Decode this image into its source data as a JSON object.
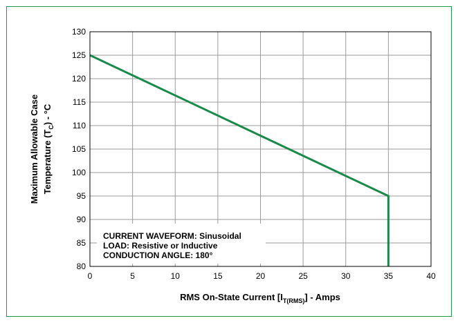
{
  "chart_data": {
    "type": "line",
    "x": [
      0,
      35,
      35
    ],
    "y": [
      125,
      95,
      80
    ],
    "xlim": [
      0,
      40
    ],
    "ylim": [
      80,
      130
    ],
    "xticks": [
      0,
      5,
      10,
      15,
      20,
      25,
      30,
      35,
      40
    ],
    "yticks": [
      80,
      85,
      90,
      95,
      100,
      105,
      110,
      115,
      120,
      125,
      130
    ],
    "grid": true,
    "line_color": "#1a8a4a",
    "frame_color": "#1a9a4a",
    "xlabel": {
      "main": "RMS On-State Current [I",
      "subscript": "T(RMS)",
      "suffix": "] - Amps"
    },
    "ylabel": {
      "line1": "Maximum Allowable Case",
      "line2_main": "Temperature (T",
      "line2_subscript": "C",
      "line2_suffix": ") - °C"
    },
    "annotations": [
      "CURRENT WAVEFORM: Sinusoidal",
      "LOAD: Resistive or Inductive",
      "CONDUCTION ANGLE: 180°"
    ]
  }
}
